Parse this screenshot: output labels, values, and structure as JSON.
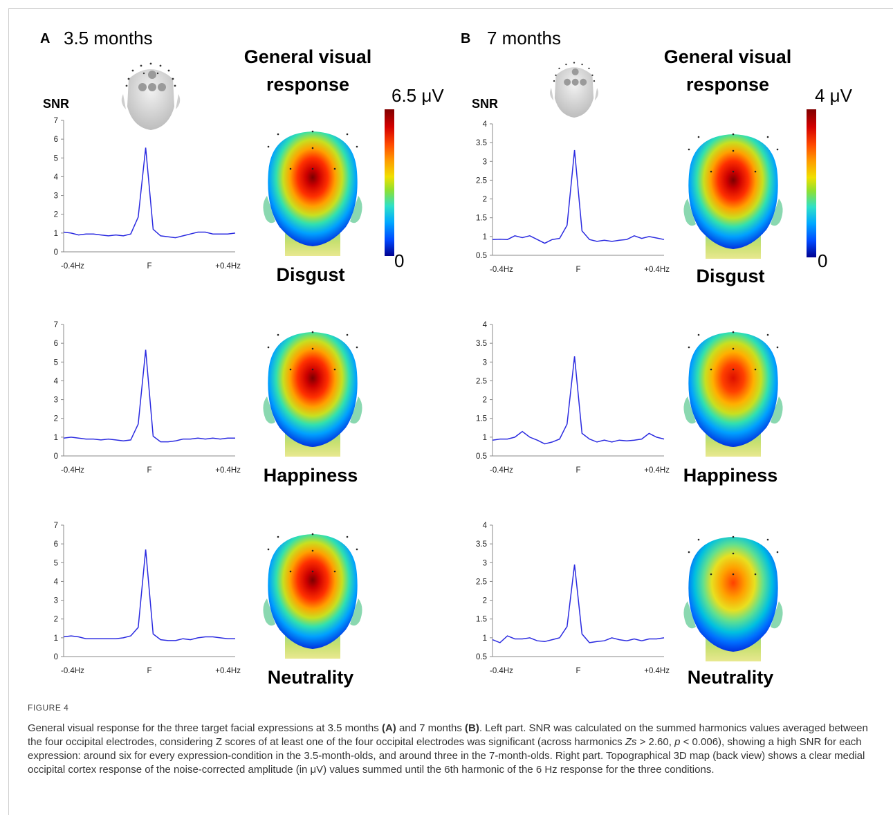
{
  "panels": [
    {
      "letter": "A",
      "age": "3.5 months",
      "title_line1": "General visual",
      "title_line2": "response",
      "snr_label": "SNR",
      "scale_max": "6.5 μV",
      "scale_min": "0",
      "expressions": [
        "Disgust",
        "Happiness",
        "Neutrality"
      ]
    },
    {
      "letter": "B",
      "age": "7 months",
      "title_line1": "General visual",
      "title_line2": "response",
      "snr_label": "SNR",
      "scale_max": "4 μV",
      "scale_min": "0",
      "expressions": [
        "Disgust",
        "Happiness",
        "Neutrality"
      ]
    }
  ],
  "chart_data": [
    {
      "type": "line",
      "panel": "A",
      "expression": "Disgust",
      "ylabel": "SNR",
      "ylim": [
        0,
        7
      ],
      "yticks": [
        "0",
        "1",
        "2",
        "3",
        "4",
        "5",
        "6",
        "7"
      ],
      "xticks": [
        "-0.4Hz",
        "F",
        "+0.4Hz"
      ],
      "values": [
        1.05,
        1.0,
        0.9,
        0.95,
        0.95,
        0.9,
        0.85,
        0.9,
        0.85,
        0.95,
        1.85,
        5.55,
        1.2,
        0.85,
        0.8,
        0.75,
        0.85,
        0.95,
        1.05,
        1.05,
        0.95,
        0.95,
        0.95,
        1.0
      ]
    },
    {
      "type": "line",
      "panel": "A",
      "expression": "Happiness",
      "ylabel": "SNR",
      "ylim": [
        0,
        7
      ],
      "yticks": [
        "0",
        "1",
        "2",
        "3",
        "4",
        "5",
        "6",
        "7"
      ],
      "xticks": [
        "-0.4Hz",
        "F",
        "+0.4Hz"
      ],
      "values": [
        0.95,
        1.0,
        0.95,
        0.9,
        0.9,
        0.85,
        0.9,
        0.85,
        0.8,
        0.85,
        1.7,
        5.65,
        1.05,
        0.75,
        0.75,
        0.8,
        0.9,
        0.9,
        0.95,
        0.9,
        0.95,
        0.9,
        0.95,
        0.95
      ]
    },
    {
      "type": "line",
      "panel": "A",
      "expression": "Neutrality",
      "ylabel": "SNR",
      "ylim": [
        0,
        7
      ],
      "yticks": [
        "0",
        "1",
        "2",
        "3",
        "4",
        "5",
        "6",
        "7"
      ],
      "xticks": [
        "-0.4Hz",
        "F",
        "+0.4Hz"
      ],
      "values": [
        1.05,
        1.1,
        1.05,
        0.95,
        0.95,
        0.95,
        0.95,
        0.95,
        1.0,
        1.1,
        1.55,
        5.7,
        1.2,
        0.9,
        0.85,
        0.85,
        0.95,
        0.9,
        1.0,
        1.05,
        1.05,
        1.0,
        0.95,
        0.95
      ]
    },
    {
      "type": "line",
      "panel": "B",
      "expression": "Disgust",
      "ylabel": "SNR",
      "ylim": [
        0.5,
        4
      ],
      "yticks": [
        "0.5",
        "1",
        "1.5",
        "2",
        "2.5",
        "3",
        "3.5",
        "4"
      ],
      "xticks": [
        "-0.4Hz",
        "F",
        "+0.4Hz"
      ],
      "values": [
        0.92,
        0.93,
        0.92,
        1.02,
        0.97,
        1.02,
        0.92,
        0.82,
        0.92,
        0.95,
        1.3,
        3.3,
        1.15,
        0.92,
        0.87,
        0.9,
        0.87,
        0.9,
        0.92,
        1.02,
        0.95,
        1.0,
        0.96,
        0.92
      ]
    },
    {
      "type": "line",
      "panel": "B",
      "expression": "Happiness",
      "ylabel": "SNR",
      "ylim": [
        0.5,
        4
      ],
      "yticks": [
        "0.5",
        "1",
        "1.5",
        "2",
        "2.5",
        "3",
        "3.5",
        "4"
      ],
      "xticks": [
        "-0.4Hz",
        "F",
        "+0.4Hz"
      ],
      "values": [
        0.92,
        0.95,
        0.95,
        1.0,
        1.15,
        1.0,
        0.92,
        0.82,
        0.87,
        0.95,
        1.35,
        3.15,
        1.1,
        0.95,
        0.87,
        0.92,
        0.87,
        0.92,
        0.9,
        0.92,
        0.95,
        1.1,
        1.0,
        0.95
      ]
    },
    {
      "type": "line",
      "panel": "B",
      "expression": "Neutrality",
      "ylabel": "SNR",
      "ylim": [
        0.5,
        4
      ],
      "yticks": [
        "0.5",
        "1",
        "1.5",
        "2",
        "2.5",
        "3",
        "3.5",
        "4"
      ],
      "xticks": [
        "-0.4Hz",
        "F",
        "+0.4Hz"
      ],
      "values": [
        0.95,
        0.87,
        1.05,
        0.97,
        0.97,
        1.0,
        0.92,
        0.9,
        0.95,
        1.0,
        1.3,
        2.95,
        1.1,
        0.87,
        0.9,
        0.92,
        1.0,
        0.95,
        0.92,
        0.97,
        0.92,
        0.97,
        0.97,
        1.0
      ]
    }
  ],
  "heatmaps": [
    {
      "panel": "A",
      "expression": "Disgust",
      "peak": 0.96
    },
    {
      "panel": "A",
      "expression": "Happiness",
      "peak": 0.97
    },
    {
      "panel": "A",
      "expression": "Neutrality",
      "peak": 0.94
    },
    {
      "panel": "B",
      "expression": "Disgust",
      "peak": 0.95
    },
    {
      "panel": "B",
      "expression": "Happiness",
      "peak": 0.86
    },
    {
      "panel": "B",
      "expression": "Neutrality",
      "peak": 0.74
    }
  ],
  "caption": {
    "figure_label": "FIGURE 4",
    "text_1": "General visual response for the three target facial expressions at 3.5 months ",
    "bold_1": "(A)",
    "text_2": " and 7 months ",
    "bold_2": "(B)",
    "text_3": ". Left part. SNR was calculated on the summed harmonics values averaged between the four occipital electrodes, considering Z scores of at least one of the four occipital electrodes was significant (across harmonics ",
    "italic_1": "Zs",
    "text_4": " > 2.60, ",
    "italic_2": "p",
    "text_5": " < 0.006), showing a high SNR for each expression: around six for every expression-condition in the 3.5-month-olds, and around three in the 7-month-olds. Right part. Topographical 3D map (back view) shows a clear medial occipital cortex response of the noise-corrected amplitude (in μV) values summed until the 6th harmonic of the 6 Hz response for the three conditions."
  }
}
